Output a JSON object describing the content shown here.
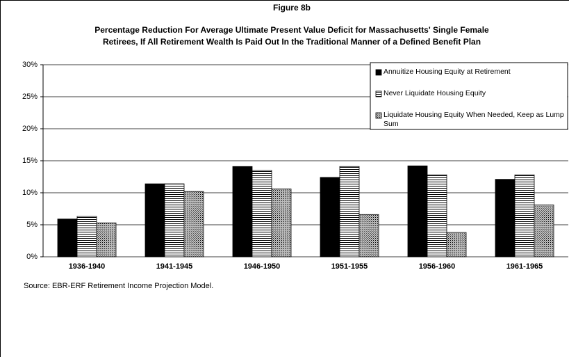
{
  "chart_data": {
    "type": "bar",
    "title": "Figure 8b",
    "subtitle": [
      "Percentage Reduction For Average Ultimate Present Value Deficit for Massachusetts' Single Female",
      "Retirees, If All Retirement Wealth Is Paid Out In the Traditional Manner of a Defined Benefit Plan"
    ],
    "categories": [
      "1936-1940",
      "1941-1945",
      "1946-1950",
      "1951-1955",
      "1956-1960",
      "1961-1965"
    ],
    "series": [
      {
        "name": "Annuitize Housing Equity at Retirement",
        "color": "#000000",
        "pattern": "solid",
        "values": [
          5.9,
          11.4,
          14.1,
          12.4,
          14.2,
          12.1
        ]
      },
      {
        "name": "Never Liquidate Housing Equity",
        "color": "#000000",
        "pattern": "horizontal-stripes",
        "values": [
          6.3,
          11.4,
          13.5,
          14.1,
          12.8,
          12.8
        ]
      },
      {
        "name": "Liquidate Housing Equity When Needed, Keep as Lump Sum",
        "color": "#000000",
        "pattern": "dots",
        "values": [
          5.3,
          10.2,
          10.6,
          6.6,
          3.8,
          8.1
        ]
      }
    ],
    "ylim": [
      0,
      30
    ],
    "yticks": [
      {
        "value": 0,
        "label": "0%"
      },
      {
        "value": 5,
        "label": "5%"
      },
      {
        "value": 10,
        "label": "10%"
      },
      {
        "value": 15,
        "label": "15%"
      },
      {
        "value": 20,
        "label": "20%"
      },
      {
        "value": 25,
        "label": "25%"
      },
      {
        "value": 30,
        "label": "30%"
      }
    ],
    "grid": true,
    "legend": "top-right",
    "source": "Source:  EBR-ERF Retirement Income Projection Model."
  }
}
